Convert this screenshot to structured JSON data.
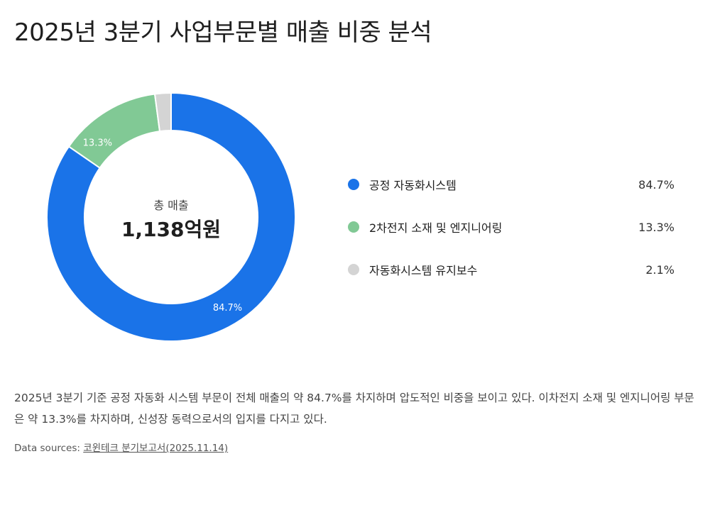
{
  "title": "2025년 3분기 사업부문별 매출 비중 분석",
  "chart_data": {
    "type": "pie",
    "donut": true,
    "center": {
      "label": "총 매출",
      "value": "1,138억원"
    },
    "categories": [
      "공정 자동화시스템",
      "2차전지 소재 및 엔지니어링",
      "자동화시스템 유지보수"
    ],
    "values": [
      84.7,
      13.3,
      2.1
    ],
    "value_labels": [
      "84.7%",
      "13.3%",
      "2.1%"
    ],
    "slice_labels_shown": [
      "84.7%",
      "13.3%",
      ""
    ],
    "colors": [
      "#1a73e8",
      "#81c995",
      "#d4d4d4"
    ],
    "legend_position": "right"
  },
  "summary": "2025년 3분기 기준 공정 자동화 시스템 부문이 전체 매출의 약 84.7%를 차지하며 압도적인 비중을 보이고 있다. 이차전지 소재 및 엔지니어링 부문은 약 13.3%를 차지하며, 신성장 동력으로서의 입지를 다지고 있다.",
  "sources": {
    "prefix": "Data sources:",
    "link_text": "코윈테크 분기보고서(2025.11.14)"
  }
}
